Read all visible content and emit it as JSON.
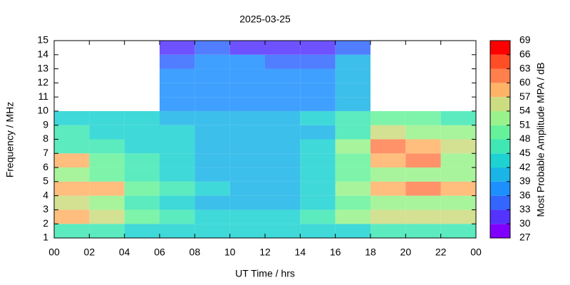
{
  "chart_data": {
    "type": "heatmap",
    "title": "2025-03-25",
    "x_label": "UT Time / hrs",
    "y_label": "Frequency / MHz",
    "colorbar_label": "Most Probable Amplitude MPA / dB",
    "x": [
      0,
      2,
      4,
      6,
      8,
      10,
      12,
      14,
      16,
      18,
      20,
      22
    ],
    "y": [
      1,
      2,
      3,
      4,
      5,
      6,
      7,
      8,
      9,
      10,
      11,
      12,
      13,
      14
    ],
    "values": [
      [
        45,
        45,
        42,
        42,
        42,
        42,
        42,
        42,
        42,
        45,
        45,
        45
      ],
      [
        57,
        54,
        48,
        45,
        42,
        42,
        42,
        45,
        51,
        54,
        54,
        54
      ],
      [
        54,
        51,
        45,
        42,
        39,
        39,
        39,
        42,
        48,
        51,
        51,
        51
      ],
      [
        57,
        57,
        48,
        45,
        42,
        39,
        39,
        42,
        51,
        57,
        60,
        57
      ],
      [
        51,
        48,
        45,
        42,
        39,
        39,
        39,
        42,
        48,
        51,
        51,
        51
      ],
      [
        57,
        48,
        45,
        42,
        39,
        39,
        39,
        42,
        48,
        57,
        60,
        51
      ],
      [
        45,
        45,
        42,
        42,
        39,
        39,
        39,
        42,
        51,
        60,
        57,
        54
      ],
      [
        45,
        42,
        42,
        42,
        39,
        39,
        39,
        39,
        45,
        54,
        51,
        51
      ],
      [
        42,
        42,
        42,
        39,
        39,
        39,
        39,
        42,
        45,
        48,
        48,
        45
      ],
      [
        null,
        null,
        null,
        36,
        36,
        36,
        36,
        36,
        39,
        null,
        null,
        null
      ],
      [
        null,
        null,
        null,
        36,
        36,
        36,
        36,
        36,
        39,
        null,
        null,
        null
      ],
      [
        null,
        null,
        null,
        36,
        36,
        36,
        36,
        36,
        39,
        null,
        null,
        null
      ],
      [
        null,
        null,
        null,
        33,
        36,
        36,
        33,
        33,
        39,
        null,
        null,
        null
      ],
      [
        null,
        null,
        null,
        30,
        33,
        30,
        30,
        30,
        33,
        null,
        null,
        null
      ]
    ],
    "xlim": [
      0,
      24
    ],
    "xticks": [
      {
        "value": 0,
        "label": "00"
      },
      {
        "value": 2,
        "label": "02"
      },
      {
        "value": 4,
        "label": "04"
      },
      {
        "value": 6,
        "label": "06"
      },
      {
        "value": 8,
        "label": "08"
      },
      10,
      12,
      14,
      16,
      18,
      20,
      22,
      {
        "value": 24,
        "label": "00"
      }
    ],
    "ylim": [
      1,
      15
    ],
    "yticks": [
      1,
      2,
      3,
      4,
      5,
      6,
      7,
      8,
      9,
      10,
      11,
      12,
      13,
      14,
      15
    ],
    "clim": [
      27,
      69
    ],
    "cticks": [
      27,
      30,
      33,
      36,
      39,
      42,
      45,
      48,
      51,
      54,
      57,
      60,
      63,
      66,
      69
    ],
    "colors": [
      "#7f00ff",
      "#5533ff",
      "#3366ff",
      "#1e8fff",
      "#1ab4e6",
      "#1ed2d2",
      "#40e6b4",
      "#66f29a",
      "#99f28c",
      "#ccdc80",
      "#ffb366",
      "#ff7f4d",
      "#ff4d26",
      "#ff0000"
    ]
  }
}
